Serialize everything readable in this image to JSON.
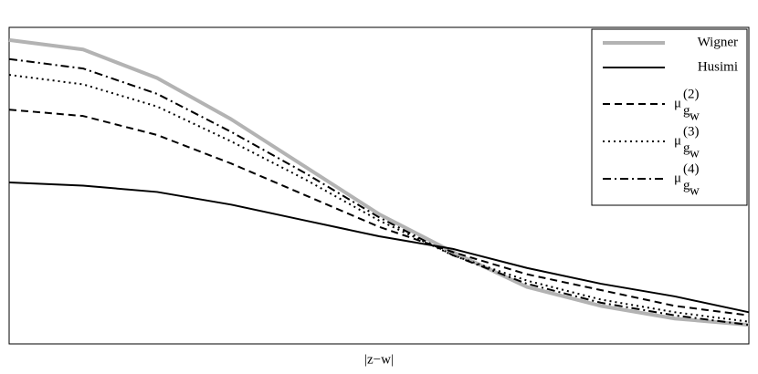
{
  "chart_data": {
    "type": "line",
    "xlabel": "|z−w|",
    "x": [
      0,
      0.1,
      0.2,
      0.3,
      0.4,
      0.5,
      0.6,
      0.7,
      0.8,
      0.9,
      1.0
    ],
    "xlim": [
      0,
      1
    ],
    "ylim": [
      0,
      1
    ],
    "legend": "upper right",
    "series": [
      {
        "name": "Wigner",
        "color": "#b3b3b3",
        "width": 4,
        "dash": "none",
        "values": [
          0.96,
          0.93,
          0.84,
          0.71,
          0.56,
          0.41,
          0.29,
          0.18,
          0.12,
          0.08,
          0.06
        ]
      },
      {
        "name": "Husimi",
        "color": "#000000",
        "width": 2,
        "dash": "none",
        "values": [
          0.51,
          0.5,
          0.48,
          0.44,
          0.39,
          0.34,
          0.3,
          0.24,
          0.19,
          0.15,
          0.1
        ]
      },
      {
        "name": "μ",
        "superscript": "(2)",
        "subscript": "g",
        "subsubscript": "w",
        "color": "#000000",
        "width": 2,
        "dash": "8,5",
        "values": [
          0.74,
          0.72,
          0.66,
          0.57,
          0.47,
          0.37,
          0.29,
          0.22,
          0.17,
          0.12,
          0.09
        ]
      },
      {
        "name": "μ",
        "superscript": "(3)",
        "subscript": "g",
        "subsubscript": "w",
        "color": "#000000",
        "width": 2,
        "dash": "2,4",
        "values": [
          0.85,
          0.82,
          0.75,
          0.64,
          0.52,
          0.39,
          0.28,
          0.2,
          0.14,
          0.1,
          0.07
        ]
      },
      {
        "name": "μ",
        "superscript": "(4)",
        "subscript": "g",
        "subsubscript": "w",
        "color": "#000000",
        "width": 2,
        "dash": "9,4,2,4",
        "values": [
          0.9,
          0.87,
          0.79,
          0.67,
          0.54,
          0.4,
          0.28,
          0.19,
          0.13,
          0.09,
          0.06
        ]
      }
    ]
  }
}
